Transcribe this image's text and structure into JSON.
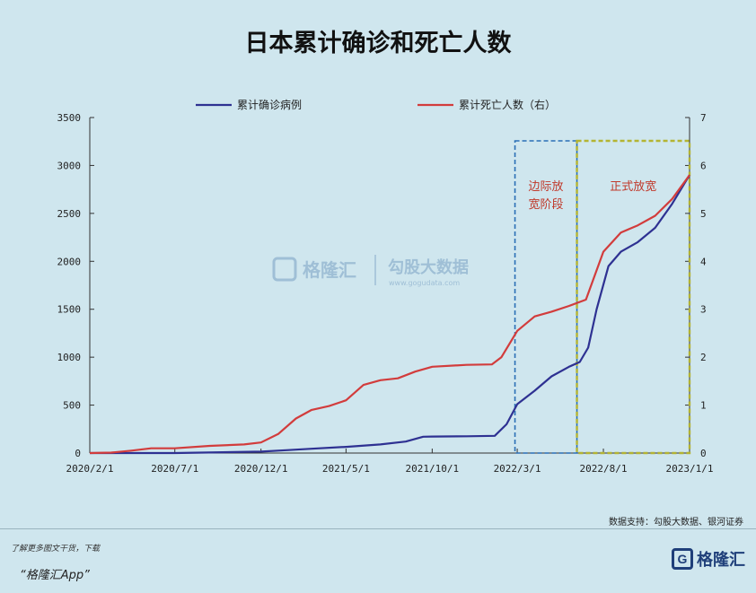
{
  "chart_data": {
    "type": "line",
    "title": "日本累计确诊和死亡人数",
    "x_ticks": [
      "2020/2/1",
      "2020/7/1",
      "2020/12/1",
      "2021/5/1",
      "2021/10/1",
      "2022/3/1",
      "2022/8/1",
      "2023/1/1"
    ],
    "y_left": {
      "ticks": [
        "3500",
        "3000",
        "2500",
        "2000",
        "1500",
        "1000",
        "500",
        "0"
      ],
      "range": [
        0,
        3500
      ]
    },
    "y_right": {
      "ticks": [
        "7",
        "6",
        "5",
        "4",
        "3",
        "2",
        "1",
        "0"
      ],
      "range": [
        0,
        7
      ]
    },
    "series": [
      {
        "name": "累计确诊病例",
        "color": "#2e3192",
        "axis": "left",
        "points": [
          [
            "2020/2/1",
            0
          ],
          [
            "2020/7/1",
            0
          ],
          [
            "2020/12/1",
            15
          ],
          [
            "2021/1/15",
            30
          ],
          [
            "2021/3/1",
            45
          ],
          [
            "2021/5/1",
            65
          ],
          [
            "2021/7/1",
            90
          ],
          [
            "2021/8/15",
            120
          ],
          [
            "2021/9/15",
            170
          ],
          [
            "2021/10/1",
            172
          ],
          [
            "2021/12/1",
            175
          ],
          [
            "2022/1/20",
            180
          ],
          [
            "2022/2/10",
            300
          ],
          [
            "2022/3/1",
            510
          ],
          [
            "2022/4/1",
            650
          ],
          [
            "2022/5/1",
            800
          ],
          [
            "2022/6/1",
            900
          ],
          [
            "2022/6/20",
            950
          ],
          [
            "2022/7/5",
            1100
          ],
          [
            "2022/7/20",
            1500
          ],
          [
            "2022/8/10",
            1950
          ],
          [
            "2022/9/1",
            2100
          ],
          [
            "2022/10/1",
            2200
          ],
          [
            "2022/11/1",
            2350
          ],
          [
            "2022/12/1",
            2600
          ],
          [
            "2023/1/1",
            2900
          ]
        ]
      },
      {
        "name": "累计死亡人数（右）",
        "color": "#d23c3c",
        "axis": "right",
        "points": [
          [
            "2020/2/1",
            0
          ],
          [
            "2020/3/10",
            0.01
          ],
          [
            "2020/4/15",
            0.05
          ],
          [
            "2020/5/20",
            0.1
          ],
          [
            "2020/7/1",
            0.1
          ],
          [
            "2020/9/1",
            0.15
          ],
          [
            "2020/11/1",
            0.18
          ],
          [
            "2020/12/1",
            0.22
          ],
          [
            "2021/1/1",
            0.4
          ],
          [
            "2021/2/1",
            0.72
          ],
          [
            "2021/3/1",
            0.9
          ],
          [
            "2021/4/1",
            0.98
          ],
          [
            "2021/5/1",
            1.1
          ],
          [
            "2021/6/1",
            1.42
          ],
          [
            "2021/7/1",
            1.52
          ],
          [
            "2021/8/1",
            1.56
          ],
          [
            "2021/9/1",
            1.7
          ],
          [
            "2021/10/1",
            1.8
          ],
          [
            "2021/12/1",
            1.84
          ],
          [
            "2022/1/15",
            1.85
          ],
          [
            "2022/2/1",
            2.0
          ],
          [
            "2022/3/1",
            2.55
          ],
          [
            "2022/4/1",
            2.85
          ],
          [
            "2022/5/1",
            2.95
          ],
          [
            "2022/6/1",
            3.07
          ],
          [
            "2022/7/1",
            3.2
          ],
          [
            "2022/8/1",
            4.2
          ],
          [
            "2022/9/1",
            4.6
          ],
          [
            "2022/10/1",
            4.75
          ],
          [
            "2022/11/1",
            4.95
          ],
          [
            "2022/12/1",
            5.3
          ],
          [
            "2023/1/1",
            5.8
          ]
        ]
      }
    ],
    "annotations": [
      {
        "label_lines": [
          "边际放",
          "宽阶段"
        ],
        "x_start": "2022/2/25",
        "x_end": "2022/6/15",
        "color": "#2a6fb5",
        "style": "dashed"
      },
      {
        "label_lines": [
          "正式放宽"
        ],
        "x_start": "2022/6/15",
        "x_end": "2023/1/1",
        "color": "#b4b432",
        "style": "dashed"
      }
    ],
    "grid": false,
    "legend": "top"
  },
  "watermark": {
    "left_text": "格隆汇",
    "right_text": "勾股大数据",
    "right_sub": "www.gogudata.com"
  },
  "footer": {
    "source": "数据支持：勾股大数据、银河证券",
    "promo": "了解更多图文干货，下载",
    "app": "“格隆汇App”",
    "logo_text": "格隆汇",
    "logo_glyph": "G"
  },
  "colors": {
    "background": "#cfe6ee",
    "axis": "#333333"
  }
}
